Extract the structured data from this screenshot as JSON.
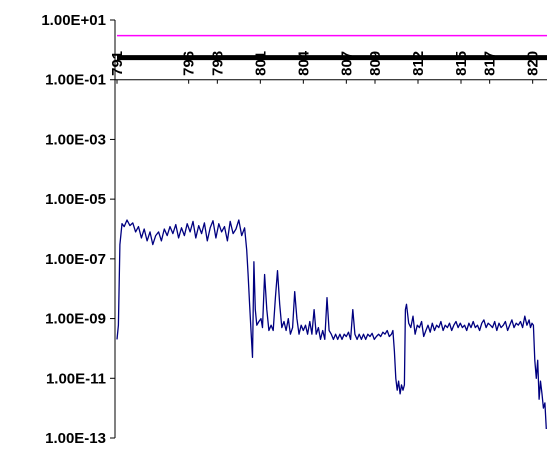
{
  "chart_data": {
    "type": "line",
    "y_scale": "log",
    "ylim": [
      1e-13,
      10
    ],
    "xlim": [
      791,
      821
    ],
    "y_ticks": [
      {
        "value": 10,
        "label": "1.00E+01"
      },
      {
        "value": 0.1,
        "label": "1.00E-01"
      },
      {
        "value": 0.001,
        "label": "1.00E-03"
      },
      {
        "value": 1e-05,
        "label": "1.00E-05"
      },
      {
        "value": 1e-07,
        "label": "1.00E-07"
      },
      {
        "value": 1e-09,
        "label": "1.00E-09"
      },
      {
        "value": 1e-11,
        "label": "1.00E-11"
      },
      {
        "value": 1e-13,
        "label": "1.00E-13"
      }
    ],
    "x_ticks": [
      {
        "value": 791,
        "label": "791"
      },
      {
        "value": 796,
        "label": "796"
      },
      {
        "value": 798,
        "label": "798"
      },
      {
        "value": 801,
        "label": "801"
      },
      {
        "value": 804,
        "label": "804"
      },
      {
        "value": 807,
        "label": "807"
      },
      {
        "value": 809,
        "label": "809"
      },
      {
        "value": 812,
        "label": "812"
      },
      {
        "value": 815,
        "label": "815"
      },
      {
        "value": 817,
        "label": "817"
      },
      {
        "value": 820,
        "label": "820"
      }
    ],
    "grid": false,
    "legend": "none",
    "series": [
      {
        "color": "#ff00ff",
        "points": [
          [
            791,
            3
          ],
          [
            821,
            3
          ]
        ]
      },
      {
        "color": "#000000",
        "points": [
          [
            791,
            0.55
          ],
          [
            821,
            0.55
          ]
        ]
      },
      {
        "color": "#000080",
        "points": [
          [
            791.0,
            2e-10
          ],
          [
            791.1,
            6e-10
          ],
          [
            791.2,
            3e-07
          ],
          [
            791.35,
            1.5e-06
          ],
          [
            791.5,
            1.2e-06
          ],
          [
            791.7,
            2e-06
          ],
          [
            791.9,
            1.3e-06
          ],
          [
            792.1,
            1.6e-06
          ],
          [
            792.3,
            8e-07
          ],
          [
            792.5,
            1.2e-06
          ],
          [
            792.7,
            5e-07
          ],
          [
            792.9,
            1e-06
          ],
          [
            793.1,
            4e-07
          ],
          [
            793.3,
            8e-07
          ],
          [
            793.5,
            3e-07
          ],
          [
            793.7,
            6e-07
          ],
          [
            793.9,
            8e-07
          ],
          [
            794.1,
            4e-07
          ],
          [
            794.3,
            1e-06
          ],
          [
            794.5,
            6e-07
          ],
          [
            794.7,
            1.2e-06
          ],
          [
            794.9,
            7e-07
          ],
          [
            795.1,
            1.4e-06
          ],
          [
            795.3,
            5e-07
          ],
          [
            795.5,
            1.1e-06
          ],
          [
            795.7,
            6e-07
          ],
          [
            795.9,
            1.5e-06
          ],
          [
            796.1,
            8e-07
          ],
          [
            796.3,
            1.8e-06
          ],
          [
            796.5,
            5e-07
          ],
          [
            796.7,
            1.3e-06
          ],
          [
            796.9,
            7e-07
          ],
          [
            797.1,
            1.6e-06
          ],
          [
            797.3,
            4e-07
          ],
          [
            797.5,
            1.1e-06
          ],
          [
            797.7,
            1.9e-06
          ],
          [
            797.9,
            5e-07
          ],
          [
            798.1,
            1.5e-06
          ],
          [
            798.3,
            8e-07
          ],
          [
            798.5,
            1.2e-06
          ],
          [
            798.7,
            4e-07
          ],
          [
            798.9,
            1.8e-06
          ],
          [
            799.1,
            7e-07
          ],
          [
            799.3,
            1e-06
          ],
          [
            799.5,
            2e-06
          ],
          [
            799.7,
            6e-07
          ],
          [
            799.9,
            1.1e-06
          ],
          [
            800.05,
            2e-07
          ],
          [
            800.15,
            3e-08
          ],
          [
            800.25,
            3e-09
          ],
          [
            800.35,
            4e-10
          ],
          [
            800.45,
            5e-11
          ],
          [
            800.55,
            8e-08
          ],
          [
            800.65,
            2e-09
          ],
          [
            800.75,
            6e-10
          ],
          [
            800.9,
            8e-10
          ],
          [
            801.05,
            1e-09
          ],
          [
            801.15,
            5e-10
          ],
          [
            801.3,
            3e-08
          ],
          [
            801.45,
            2e-09
          ],
          [
            801.6,
            4e-10
          ],
          [
            801.75,
            6e-10
          ],
          [
            801.9,
            4e-10
          ],
          [
            802.05,
            5e-09
          ],
          [
            802.2,
            4e-08
          ],
          [
            802.35,
            3e-09
          ],
          [
            802.5,
            5e-10
          ],
          [
            802.65,
            8e-10
          ],
          [
            802.8,
            4e-10
          ],
          [
            802.95,
            1e-09
          ],
          [
            803.1,
            3e-10
          ],
          [
            803.25,
            5e-10
          ],
          [
            803.4,
            8e-09
          ],
          [
            803.55,
            1e-09
          ],
          [
            803.7,
            3e-10
          ],
          [
            803.85,
            6e-10
          ],
          [
            804.0,
            4e-10
          ],
          [
            804.15,
            6e-10
          ],
          [
            804.3,
            3e-10
          ],
          [
            804.45,
            8e-10
          ],
          [
            804.6,
            3e-10
          ],
          [
            804.75,
            2e-09
          ],
          [
            804.9,
            3e-10
          ],
          [
            805.05,
            5e-10
          ],
          [
            805.2,
            2e-10
          ],
          [
            805.35,
            4e-10
          ],
          [
            805.5,
            2e-10
          ],
          [
            805.65,
            5e-09
          ],
          [
            805.8,
            4e-10
          ],
          [
            805.95,
            3e-10
          ],
          [
            806.1,
            2e-10
          ],
          [
            806.25,
            3e-10
          ],
          [
            806.4,
            2e-10
          ],
          [
            806.55,
            3e-10
          ],
          [
            806.7,
            2e-10
          ],
          [
            806.85,
            3e-10
          ],
          [
            807.0,
            2.5e-10
          ],
          [
            807.15,
            3.5e-10
          ],
          [
            807.3,
            2e-10
          ],
          [
            807.45,
            2e-09
          ],
          [
            807.6,
            3e-10
          ],
          [
            807.75,
            2e-10
          ],
          [
            807.9,
            3e-10
          ],
          [
            808.05,
            2e-10
          ],
          [
            808.2,
            3e-10
          ],
          [
            808.35,
            2e-10
          ],
          [
            808.5,
            3e-10
          ],
          [
            808.65,
            2.5e-10
          ],
          [
            808.8,
            3.2e-10
          ],
          [
            808.95,
            2e-10
          ],
          [
            809.1,
            2.5e-10
          ],
          [
            809.25,
            3e-10
          ],
          [
            809.4,
            2.5e-10
          ],
          [
            809.55,
            3.5e-10
          ],
          [
            809.7,
            3e-10
          ],
          [
            809.85,
            4e-10
          ],
          [
            810.0,
            2.5e-10
          ],
          [
            810.15,
            3e-10
          ],
          [
            810.25,
            4e-10
          ],
          [
            810.35,
            8e-11
          ],
          [
            810.45,
            1e-11
          ],
          [
            810.55,
            4e-12
          ],
          [
            810.65,
            8e-12
          ],
          [
            810.75,
            3e-12
          ],
          [
            810.85,
            6e-12
          ],
          [
            810.95,
            4e-12
          ],
          [
            811.05,
            6e-12
          ],
          [
            811.12,
            2e-09
          ],
          [
            811.2,
            3e-09
          ],
          [
            811.35,
            7e-10
          ],
          [
            811.5,
            5e-10
          ],
          [
            811.65,
            1.2e-09
          ],
          [
            811.8,
            3e-10
          ],
          [
            811.95,
            6e-10
          ],
          [
            812.1,
            5e-10
          ],
          [
            812.25,
            8e-10
          ],
          [
            812.4,
            2.5e-10
          ],
          [
            812.55,
            4e-10
          ],
          [
            812.7,
            6e-10
          ],
          [
            812.85,
            3.5e-10
          ],
          [
            813.0,
            7e-10
          ],
          [
            813.15,
            4e-10
          ],
          [
            813.3,
            6e-10
          ],
          [
            813.45,
            5e-10
          ],
          [
            813.6,
            8e-10
          ],
          [
            813.75,
            4e-10
          ],
          [
            813.9,
            6e-10
          ],
          [
            814.05,
            5e-10
          ],
          [
            814.2,
            7e-10
          ],
          [
            814.35,
            4e-10
          ],
          [
            814.5,
            6e-10
          ],
          [
            814.65,
            8e-10
          ],
          [
            814.8,
            5e-10
          ],
          [
            814.95,
            7e-10
          ],
          [
            815.1,
            5e-10
          ],
          [
            815.25,
            6e-10
          ],
          [
            815.4,
            4e-10
          ],
          [
            815.55,
            7e-10
          ],
          [
            815.7,
            5e-10
          ],
          [
            815.85,
            8e-10
          ],
          [
            816.0,
            5e-10
          ],
          [
            816.15,
            6e-10
          ],
          [
            816.3,
            4e-10
          ],
          [
            816.45,
            7e-10
          ],
          [
            816.6,
            9e-10
          ],
          [
            816.75,
            5e-10
          ],
          [
            816.9,
            7e-10
          ],
          [
            817.05,
            6e-10
          ],
          [
            817.2,
            5e-10
          ],
          [
            817.35,
            8e-10
          ],
          [
            817.5,
            4e-10
          ],
          [
            817.65,
            7e-10
          ],
          [
            817.8,
            5e-10
          ],
          [
            817.95,
            6e-10
          ],
          [
            818.1,
            8e-10
          ],
          [
            818.25,
            4e-10
          ],
          [
            818.4,
            6e-10
          ],
          [
            818.55,
            9e-10
          ],
          [
            818.7,
            5e-10
          ],
          [
            818.85,
            7e-10
          ],
          [
            819.0,
            6e-10
          ],
          [
            819.15,
            8e-10
          ],
          [
            819.3,
            5e-10
          ],
          [
            819.45,
            1.2e-09
          ],
          [
            819.6,
            6e-10
          ],
          [
            819.75,
            9e-10
          ],
          [
            819.85,
            5e-10
          ],
          [
            819.95,
            7e-10
          ],
          [
            820.05,
            6e-10
          ],
          [
            820.15,
            4e-11
          ],
          [
            820.25,
            1e-11
          ],
          [
            820.35,
            4e-11
          ],
          [
            820.45,
            2e-12
          ],
          [
            820.55,
            8e-12
          ],
          [
            820.65,
            3e-12
          ],
          [
            820.75,
            1e-12
          ],
          [
            820.85,
            1.5e-12
          ],
          [
            820.95,
            2e-13
          ]
        ]
      }
    ]
  }
}
